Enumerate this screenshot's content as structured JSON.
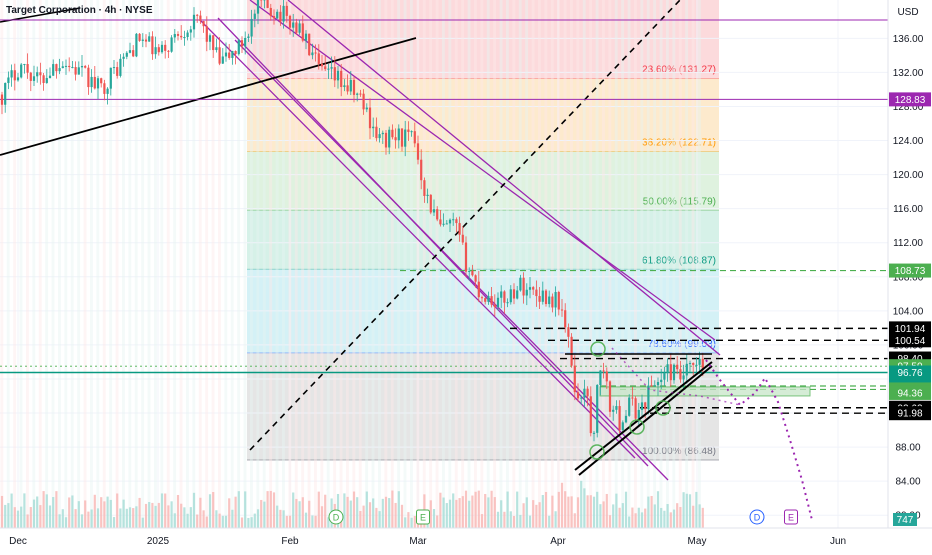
{
  "header": {
    "title": "Target Corporation · 4h · NYSE",
    "currency": "USD"
  },
  "colors": {
    "bull": "#26a69a",
    "bear": "#ef5350",
    "magenta": "#9c27b0",
    "teal_line": "#089981",
    "black": "#000000",
    "fib_text_red": "#f23645",
    "fib_text_orange": "#ff9800",
    "fib_text_green": "#4caf50",
    "fib_text_teal": "#089981",
    "fib_text_blue": "#2962ff",
    "fib_text_gray": "#787b86"
  },
  "chart_data": {
    "type": "candlestick",
    "x_axis": {
      "ticks": [
        "Dec",
        "2025",
        "Feb",
        "Mar",
        "Apr",
        "May",
        "Jun"
      ]
    },
    "y_axis": {
      "ylim": [
        78.5,
        140.5
      ],
      "ticks": [
        "136.00",
        "132.00",
        "128.00",
        "124.00",
        "120.00",
        "116.00",
        "112.00",
        "108.00",
        "104.00",
        "100.00",
        "96.00",
        "92.00",
        "88.00",
        "84.00",
        "80.00"
      ]
    },
    "fibonacci": [
      {
        "level": "23.60% (131.27)",
        "price": 131.27,
        "color": "#f23645"
      },
      {
        "level": "38.20% (122.71)",
        "price": 122.71,
        "color": "#ff9800"
      },
      {
        "level": "50.00% (115.79)",
        "price": 115.79,
        "color": "#4caf50"
      },
      {
        "level": "61.80% (108.87)",
        "price": 108.87,
        "color": "#089981"
      },
      {
        "level": "78.60% (99.03)",
        "price": 99.03,
        "color": "#2962ff"
      },
      {
        "level": "100.00% (86.48)",
        "price": 86.48,
        "color": "#787b86"
      }
    ],
    "price_labels": [
      {
        "text": "128.83",
        "price": 128.83,
        "bg": "#9c27b0",
        "fg": "#ffffff"
      },
      {
        "text": "108.73",
        "price": 108.73,
        "bg": "#4caf50",
        "fg": "#ffffff"
      },
      {
        "text": "101.94",
        "price": 101.94,
        "bg": "#000000",
        "fg": "#ffffff"
      },
      {
        "text": "100.54",
        "price": 100.54,
        "bg": "#000000",
        "fg": "#ffffff"
      },
      {
        "text": "98.40",
        "price": 98.4,
        "bg": "#000000",
        "fg": "#ffffff"
      },
      {
        "text": "97.50",
        "price": 97.5,
        "bg": "#4caf50",
        "fg": "#ffffff"
      },
      {
        "text": "96.76",
        "price": 96.76,
        "bg": "#089981",
        "fg": "#ffffff"
      },
      {
        "text": "95.17",
        "price": 95.17,
        "bg": "#089981",
        "fg": "#ffffff"
      },
      {
        "text": "94.77",
        "price": 94.77,
        "bg": "#4caf50",
        "fg": "#ffffff"
      },
      {
        "text": "94.36",
        "price": 94.36,
        "bg": "#4caf50",
        "fg": "#ffffff"
      },
      {
        "text": "92.62",
        "price": 92.62,
        "bg": "#000000",
        "fg": "#ffffff"
      },
      {
        "text": "91.98",
        "price": 91.98,
        "bg": "#000000",
        "fg": "#ffffff"
      }
    ],
    "volume_label": {
      "text": "747",
      "bg": "#26a69a"
    },
    "key_path": [
      [
        0,
        129
      ],
      [
        20,
        133
      ],
      [
        40,
        131
      ],
      [
        60,
        133.5
      ],
      [
        80,
        132
      ],
      [
        100,
        130
      ],
      [
        120,
        133
      ],
      [
        140,
        136
      ],
      [
        160,
        134
      ],
      [
        180,
        137
      ],
      [
        200,
        138
      ],
      [
        220,
        133
      ],
      [
        240,
        135
      ],
      [
        260,
        140
      ],
      [
        280,
        139
      ],
      [
        300,
        137
      ],
      [
        320,
        132
      ],
      [
        340,
        131
      ],
      [
        360,
        129
      ],
      [
        380,
        124
      ],
      [
        400,
        124.5
      ],
      [
        415,
        124
      ],
      [
        425,
        118
      ],
      [
        440,
        113.5
      ],
      [
        455,
        114
      ],
      [
        465,
        110
      ],
      [
        480,
        106
      ],
      [
        500,
        105
      ],
      [
        520,
        107
      ],
      [
        540,
        106
      ],
      [
        560,
        105
      ],
      [
        570,
        99
      ],
      [
        578,
        93
      ],
      [
        585,
        96
      ],
      [
        592,
        88
      ],
      [
        600,
        98
      ],
      [
        610,
        93
      ],
      [
        620,
        91
      ],
      [
        630,
        93
      ],
      [
        640,
        92
      ],
      [
        650,
        95
      ],
      [
        660,
        96
      ],
      [
        670,
        97
      ],
      [
        680,
        96
      ],
      [
        690,
        97
      ],
      [
        700,
        97.5
      ],
      [
        706,
        97.2
      ]
    ],
    "events": [
      "D",
      "E",
      "D",
      "E"
    ]
  }
}
